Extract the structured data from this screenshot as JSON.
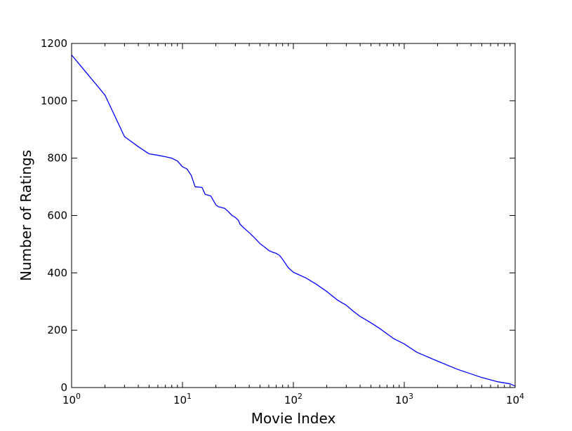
{
  "chart_data": {
    "type": "line",
    "title": "",
    "xlabel": "Movie Index",
    "ylabel": "Number of Ratings",
    "x_scale": "log",
    "y_scale": "linear",
    "xlim": [
      1,
      10000
    ],
    "ylim": [
      0,
      1200
    ],
    "grid": false,
    "legend": null,
    "x_ticks": [
      {
        "value": 1,
        "base": "10",
        "exp": "0"
      },
      {
        "value": 10,
        "base": "10",
        "exp": "1"
      },
      {
        "value": 100,
        "base": "10",
        "exp": "2"
      },
      {
        "value": 1000,
        "base": "10",
        "exp": "3"
      },
      {
        "value": 10000,
        "base": "10",
        "exp": "4"
      }
    ],
    "y_ticks": [
      0,
      200,
      400,
      600,
      800,
      1000,
      1200
    ],
    "colors": {
      "line": "#0000ff",
      "axes": "#000000",
      "background": "#ffffff"
    },
    "series": [
      {
        "x": [
          1,
          2,
          3,
          4,
          5,
          6,
          7,
          8,
          9,
          10,
          11,
          12,
          13,
          15,
          16,
          18,
          20,
          21,
          24,
          26,
          28,
          30,
          32,
          33,
          35,
          40,
          45,
          50,
          55,
          60,
          65,
          70,
          75,
          80,
          90,
          100,
          130,
          160,
          200,
          250,
          300,
          350,
          400,
          500,
          600,
          800,
          1000,
          1300,
          2000,
          3000,
          5000,
          7000,
          9000,
          10000
        ],
        "y": [
          1160,
          1020,
          875,
          840,
          815,
          810,
          805,
          800,
          790,
          770,
          762,
          740,
          700,
          698,
          674,
          668,
          637,
          631,
          625,
          613,
          600,
          593,
          583,
          570,
          560,
          540,
          521,
          502,
          490,
          478,
          472,
          468,
          461,
          447,
          418,
          402,
          382,
          361,
          335,
          305,
          287,
          265,
          248,
          226,
          206,
          171,
          152,
          123,
          92,
          64,
          35,
          20,
          13,
          5
        ]
      }
    ]
  }
}
